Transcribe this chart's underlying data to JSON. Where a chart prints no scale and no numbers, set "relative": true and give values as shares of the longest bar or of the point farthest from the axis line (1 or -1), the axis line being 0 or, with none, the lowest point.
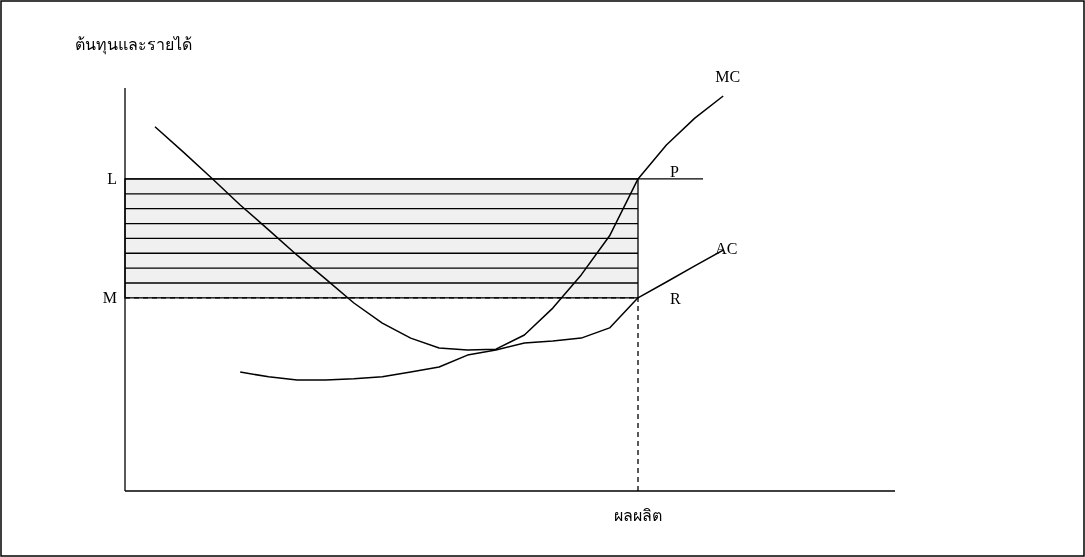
{
  "chart_data": {
    "type": "line",
    "relative": true,
    "ylabel": "ต้นทุนและรายได้",
    "xlabel": "ผลผลิต",
    "line_style": "solid",
    "categories": [
      null,
      null,
      null,
      null,
      null,
      null,
      null,
      null,
      null,
      null,
      null,
      null,
      null,
      null,
      null,
      null,
      null,
      null,
      null,
      null,
      null
    ],
    "series": [
      {
        "name": "MC",
        "color": "#000000",
        "values": [
          0.922,
          0.858,
          0.792,
          0.724,
          0.661,
          0.597,
          0.537,
          0.476,
          0.425,
          0.387,
          0.362,
          0.357,
          0.359,
          0.395,
          0.463,
          0.547,
          0.646,
          0.79,
          0.876,
          0.944,
          1
        ]
      },
      {
        "name": "AC",
        "color": "#000000",
        "values": [
          null,
          null,
          null,
          0.301,
          0.289,
          0.281,
          0.281,
          0.284,
          0.289,
          0.301,
          0.314,
          0.344,
          0.357,
          0.375,
          0.38,
          0.387,
          0.413,
          0.489,
          0.529,
          0.57,
          0.61
        ]
      }
    ],
    "ref_lines": [
      {
        "axis": "y",
        "value": 0.79,
        "label": "L",
        "line_style": "solid",
        "color": "#000000"
      },
      {
        "axis": "y",
        "value": 0.489,
        "label": "M",
        "line_style": "dashed",
        "color": "#000000"
      }
    ],
    "bands": [
      {
        "axis": "y",
        "from": 0.489,
        "to": 0.79,
        "color": "#000000"
      }
    ],
    "annotations": [
      "P",
      "R"
    ]
  }
}
